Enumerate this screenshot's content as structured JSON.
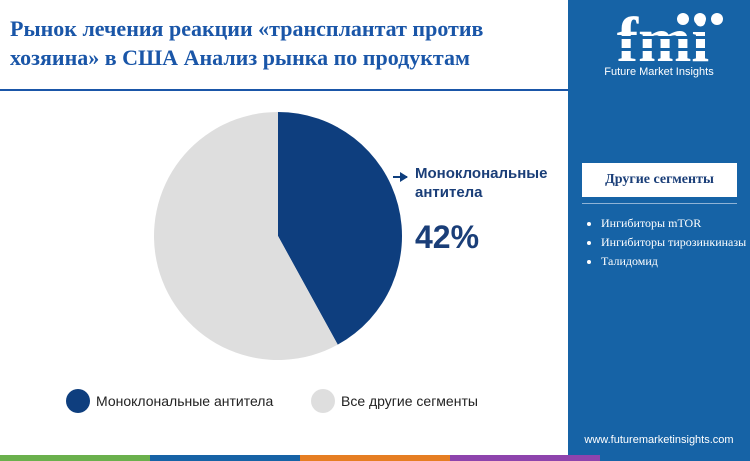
{
  "header": {
    "title": "Рынок лечения реакции «трансплантат против хозяина» в США Анализ рынка по продуктам"
  },
  "brand": {
    "logo_text": "fmi",
    "name": "Future Market Insights",
    "website": "www.futuremarketinsights.com"
  },
  "sidebar": {
    "heading": "Другие сегменты",
    "segments": [
      "Ингибиторы mTOR",
      "Ингибиторы тирозинкиназы",
      "Талидомид"
    ]
  },
  "callout": {
    "label": "Моноклональные антитела",
    "value": "42%"
  },
  "colors": {
    "primary": "#0e3e7e",
    "secondary": "#dedede",
    "sidebar": "#1663a6",
    "title": "#1a56a8"
  },
  "footer_bar_colors": [
    "#6ab04c",
    "#1663a6",
    "#e67e22",
    "#8e44ad",
    "#1663a6"
  ],
  "chart_data": {
    "type": "pie",
    "start_angle_deg": 0,
    "direction": "clockwise",
    "series": [
      {
        "name": "Моноклональные антитела",
        "value": 42,
        "color": "#0e3e7e"
      },
      {
        "name": "Все другие сегменты",
        "value": 58,
        "color": "#dedede"
      }
    ],
    "legend_position": "bottom"
  }
}
